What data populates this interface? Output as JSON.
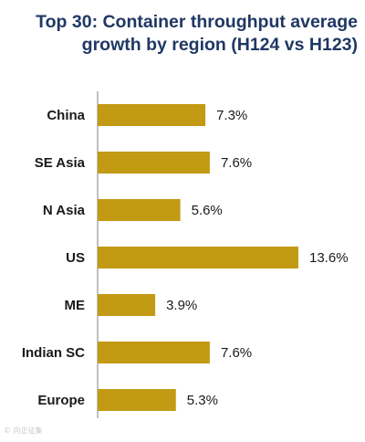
{
  "chart_data": {
    "type": "bar",
    "orientation": "horizontal",
    "title_lines": [
      "Top 30: Container throughput average",
      "growth by region (H124 vs H123)"
    ],
    "categories": [
      "China",
      "SE Asia",
      "N Asia",
      "US",
      "ME",
      "Indian SC",
      "Europe"
    ],
    "values": [
      7.3,
      7.6,
      5.6,
      13.6,
      3.9,
      7.6,
      5.3
    ],
    "value_labels": [
      "7.3%",
      "7.6%",
      "5.6%",
      "13.6%",
      "3.9%",
      "7.6%",
      "5.3%"
    ],
    "unit": "%",
    "xlim": [
      0,
      13.6
    ],
    "grid": false,
    "legend": "none",
    "bar_color": "#c29a14",
    "axis_color": "#808080"
  },
  "watermark": "© 向正征集"
}
